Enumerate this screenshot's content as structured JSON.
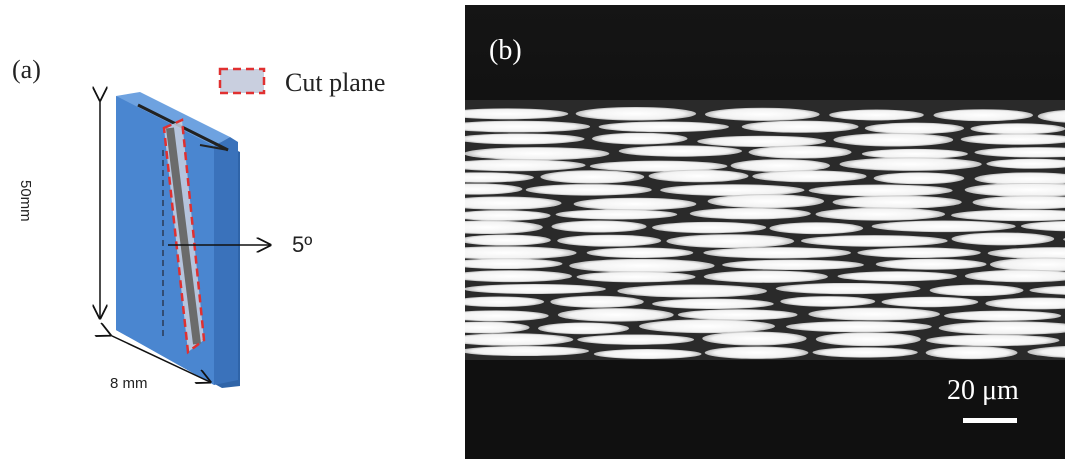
{
  "panel_a": {
    "label": "(a)",
    "legend_label": "Cut plane",
    "height_dimension": "50mm",
    "width_dimension": "8 mm",
    "angle_label": "5º",
    "colors": {
      "block": "#4a86d0",
      "block_side": "#2f64a8",
      "cut_outline": "#e03030",
      "cut_fill": "#c9cfdf",
      "stripe": "#6b6b6b"
    }
  },
  "panel_b": {
    "label": "(b)",
    "scale_bar_label": "20 μm"
  }
}
